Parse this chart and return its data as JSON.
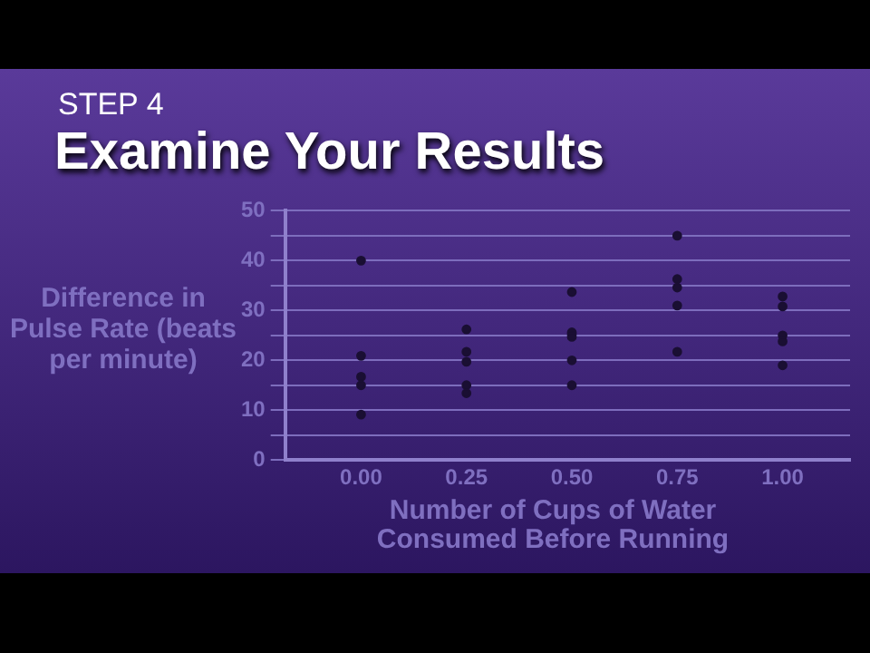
{
  "chart_data": {
    "type": "scatter",
    "subtitle": "STEP 4",
    "title": "Examine Your Results",
    "xlabel": "Number of Cups of Water Consumed Before Running",
    "ylabel": "Difference in Pulse Rate (beats per minute)",
    "series": [
      {
        "color": "#1a0f33",
        "x": [
          0,
          0,
          0,
          0,
          0,
          0.25,
          0.25,
          0.25,
          0.25,
          0.25,
          0.5,
          0.5,
          0.5,
          0.5,
          0.5,
          0.5,
          0.75,
          0.75,
          0.75,
          0.75,
          0.75,
          1,
          1,
          1,
          1,
          1
        ],
        "values": [
          40,
          20.9,
          16.7,
          15,
          9.1,
          26.2,
          21.7,
          19.7,
          15,
          13.4,
          33.7,
          25.6,
          25.2,
          24.7,
          20,
          15,
          45,
          36.3,
          34.6,
          31,
          21.7,
          32.8,
          30.8,
          25,
          23.8,
          19
        ]
      }
    ],
    "xlim": [
      -0.18,
      1.16
    ],
    "xticks": [
      {
        "value": 0,
        "label": "0.00"
      },
      {
        "value": 0.25,
        "label": "0.25"
      },
      {
        "value": 0.5,
        "label": "0.50"
      },
      {
        "value": 0.75,
        "label": "0.75"
      },
      {
        "value": 1,
        "label": "1.00"
      }
    ],
    "ylim": [
      0,
      50
    ],
    "yticks": [
      0,
      {
        "value": 5,
        "label": null
      },
      10,
      {
        "value": 15,
        "label": null
      },
      20,
      {
        "value": 25,
        "label": null
      },
      30,
      {
        "value": 35,
        "label": null
      },
      40,
      {
        "value": 45,
        "label": null
      },
      50
    ],
    "grid": "y",
    "legend": false,
    "marker": "circle"
  }
}
